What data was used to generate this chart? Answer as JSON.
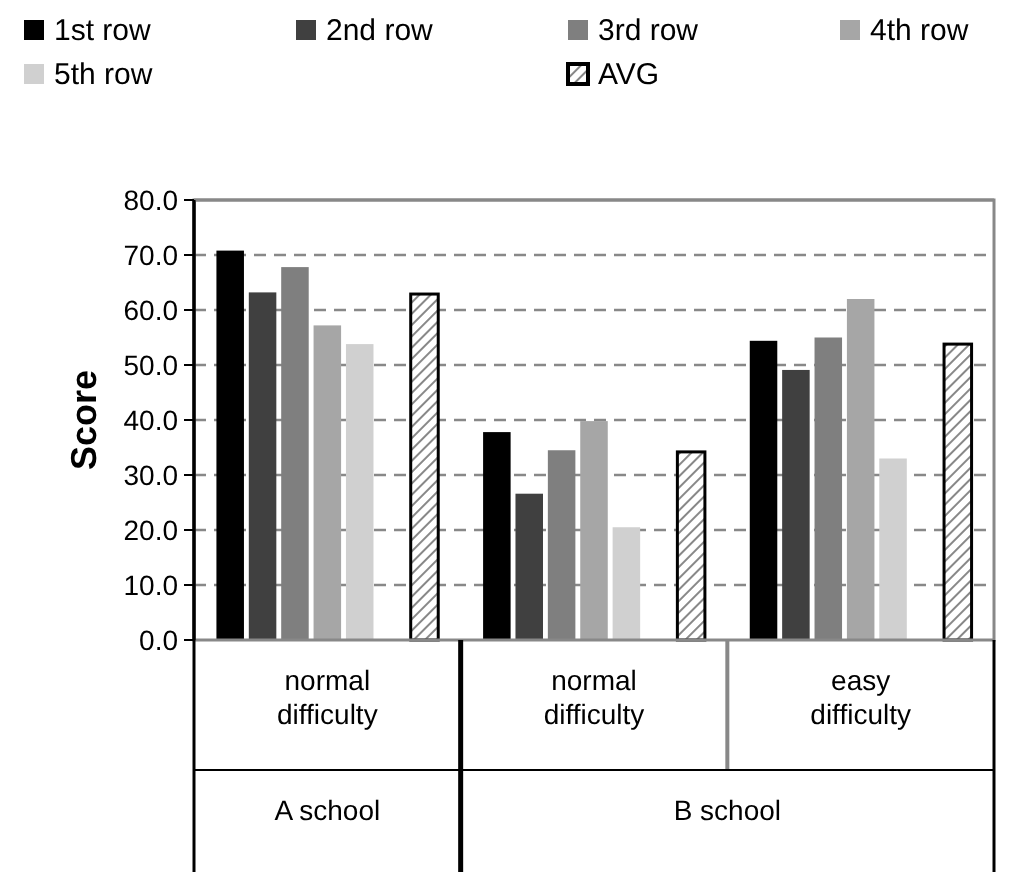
{
  "chart_data": {
    "type": "bar",
    "ylabel": "Score",
    "categories": [
      "normal difficulty",
      "normal difficulty",
      "easy difficulty"
    ],
    "annotations": [
      "A school",
      "B school"
    ],
    "series": [
      {
        "name": "1st row",
        "color": "#000000",
        "values": [
          70.8,
          37.8,
          54.4
        ]
      },
      {
        "name": "2nd row",
        "color": "#404040",
        "values": [
          63.2,
          26.6,
          49.1
        ]
      },
      {
        "name": "3rd row",
        "color": "#7f7f7f",
        "values": [
          67.8,
          34.5,
          55.0
        ]
      },
      {
        "name": "4th row",
        "color": "#a6a6a6",
        "values": [
          57.2,
          39.8,
          62.0
        ]
      },
      {
        "name": "5th row",
        "color": "#d0d0d0",
        "values": [
          53.8,
          20.5,
          33.0
        ]
      },
      {
        "name": "AVG",
        "color": "#000000",
        "values": [
          62.9,
          34.2,
          53.8
        ]
      }
    ],
    "ylim": [
      0,
      80
    ],
    "yticks": [
      {
        "value": 0,
        "label": "0.0"
      },
      {
        "value": 10,
        "label": "10.0"
      },
      {
        "value": 20,
        "label": "20.0"
      },
      {
        "value": 30,
        "label": "30.0"
      },
      {
        "value": 40,
        "label": "40.0"
      },
      {
        "value": 50,
        "label": "50.0"
      },
      {
        "value": 60,
        "label": "60.0"
      },
      {
        "value": 70,
        "label": "70.0"
      },
      {
        "value": 80,
        "label": "80.0"
      }
    ],
    "grid": "y",
    "legend": "top"
  }
}
